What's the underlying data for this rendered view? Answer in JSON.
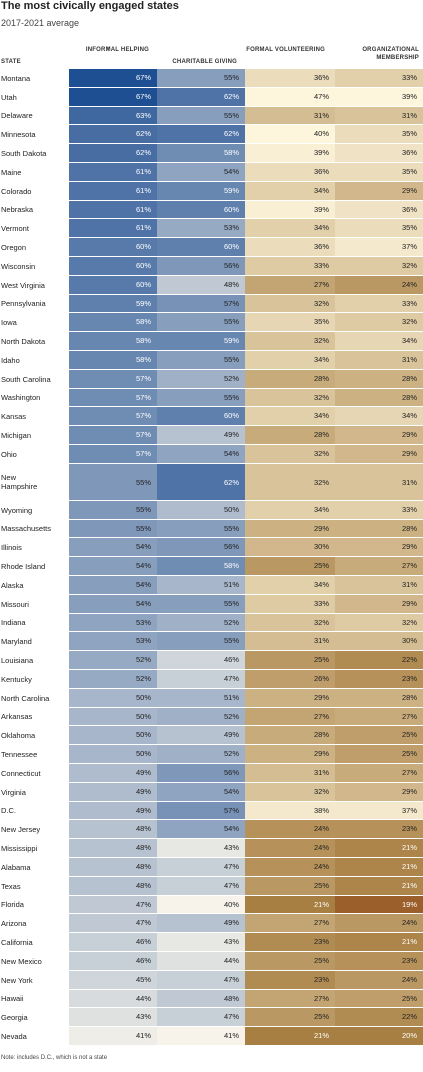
{
  "title": "The most civically engaged states",
  "subtitle": "2017-2021 average",
  "note": "Note: includes D.C., which is not a state",
  "columns": {
    "state": "STATE",
    "informal": "INFORMAL HELPING",
    "charitable": "CHARITABLE GIVING",
    "formal": "FORMAL VOLUNTEERING",
    "org": "ORGANIZATIONAL MEMBERSHIP"
  },
  "sort_icon": "sort-descending-icon",
  "colors": {
    "blue_low": "#f7f3ea",
    "blue_high": "#1f4f93",
    "gold_low": "#fdf5dc",
    "gold_high": "#a4793a",
    "florida_org": "#9b5f2c"
  },
  "chart_data": {
    "type": "table",
    "columns": [
      "State",
      "Informal helping",
      "Charitable giving",
      "Formal volunteering",
      "Organizational membership"
    ],
    "rows": [
      {
        "state": "Montana",
        "informal": 67,
        "charitable": 55,
        "formal": 36,
        "org": 33
      },
      {
        "state": "Utah",
        "informal": 67,
        "charitable": 62,
        "formal": 47,
        "org": 39
      },
      {
        "state": "Delaware",
        "informal": 63,
        "charitable": 55,
        "formal": 31,
        "org": 31
      },
      {
        "state": "Minnesota",
        "informal": 62,
        "charitable": 62,
        "formal": 40,
        "org": 35
      },
      {
        "state": "South Dakota",
        "informal": 62,
        "charitable": 58,
        "formal": 39,
        "org": 36
      },
      {
        "state": "Maine",
        "informal": 61,
        "charitable": 54,
        "formal": 36,
        "org": 35
      },
      {
        "state": "Colorado",
        "informal": 61,
        "charitable": 59,
        "formal": 34,
        "org": 29
      },
      {
        "state": "Nebraska",
        "informal": 61,
        "charitable": 60,
        "formal": 39,
        "org": 36
      },
      {
        "state": "Vermont",
        "informal": 61,
        "charitable": 53,
        "formal": 34,
        "org": 35
      },
      {
        "state": "Oregon",
        "informal": 60,
        "charitable": 60,
        "formal": 36,
        "org": 37
      },
      {
        "state": "Wisconsin",
        "informal": 60,
        "charitable": 56,
        "formal": 33,
        "org": 32
      },
      {
        "state": "West Virginia",
        "informal": 60,
        "charitable": 48,
        "formal": 27,
        "org": 24
      },
      {
        "state": "Pennsylvania",
        "informal": 59,
        "charitable": 57,
        "formal": 32,
        "org": 33
      },
      {
        "state": "Iowa",
        "informal": 58,
        "charitable": 55,
        "formal": 35,
        "org": 32
      },
      {
        "state": "North Dakota",
        "informal": 58,
        "charitable": 59,
        "formal": 32,
        "org": 34
      },
      {
        "state": "Idaho",
        "informal": 58,
        "charitable": 55,
        "formal": 34,
        "org": 31
      },
      {
        "state": "South Carolina",
        "informal": 57,
        "charitable": 52,
        "formal": 28,
        "org": 28
      },
      {
        "state": "Washington",
        "informal": 57,
        "charitable": 55,
        "formal": 32,
        "org": 28
      },
      {
        "state": "Kansas",
        "informal": 57,
        "charitable": 60,
        "formal": 34,
        "org": 34
      },
      {
        "state": "Michigan",
        "informal": 57,
        "charitable": 49,
        "formal": 28,
        "org": 29
      },
      {
        "state": "Ohio",
        "informal": 57,
        "charitable": 54,
        "formal": 32,
        "org": 29
      },
      {
        "state": "New Hampshire",
        "informal": 55,
        "charitable": 62,
        "formal": 32,
        "org": 31
      },
      {
        "state": "Wyoming",
        "informal": 55,
        "charitable": 50,
        "formal": 34,
        "org": 33
      },
      {
        "state": "Massachusetts",
        "informal": 55,
        "charitable": 55,
        "formal": 29,
        "org": 28
      },
      {
        "state": "Illinois",
        "informal": 54,
        "charitable": 56,
        "formal": 30,
        "org": 29
      },
      {
        "state": "Rhode Island",
        "informal": 54,
        "charitable": 58,
        "formal": 25,
        "org": 27
      },
      {
        "state": "Alaska",
        "informal": 54,
        "charitable": 51,
        "formal": 34,
        "org": 31
      },
      {
        "state": "Missouri",
        "informal": 54,
        "charitable": 55,
        "formal": 33,
        "org": 29
      },
      {
        "state": "Indiana",
        "informal": 53,
        "charitable": 52,
        "formal": 32,
        "org": 32
      },
      {
        "state": "Maryland",
        "informal": 53,
        "charitable": 55,
        "formal": 31,
        "org": 30
      },
      {
        "state": "Louisiana",
        "informal": 52,
        "charitable": 46,
        "formal": 25,
        "org": 22
      },
      {
        "state": "Kentucky",
        "informal": 52,
        "charitable": 47,
        "formal": 26,
        "org": 23
      },
      {
        "state": "North Carolina",
        "informal": 50,
        "charitable": 51,
        "formal": 29,
        "org": 28
      },
      {
        "state": "Arkansas",
        "informal": 50,
        "charitable": 52,
        "formal": 27,
        "org": 27
      },
      {
        "state": "Oklahoma",
        "informal": 50,
        "charitable": 49,
        "formal": 28,
        "org": 25
      },
      {
        "state": "Tennessee",
        "informal": 50,
        "charitable": 52,
        "formal": 29,
        "org": 25
      },
      {
        "state": "Connecticut",
        "informal": 49,
        "charitable": 56,
        "formal": 31,
        "org": 27
      },
      {
        "state": "Virginia",
        "informal": 49,
        "charitable": 54,
        "formal": 32,
        "org": 29
      },
      {
        "state": "D.C.",
        "informal": 49,
        "charitable": 57,
        "formal": 38,
        "org": 37
      },
      {
        "state": "New Jersey",
        "informal": 48,
        "charitable": 54,
        "formal": 24,
        "org": 23
      },
      {
        "state": "Mississippi",
        "informal": 48,
        "charitable": 43,
        "formal": 24,
        "org": 21
      },
      {
        "state": "Alabama",
        "informal": 48,
        "charitable": 47,
        "formal": 24,
        "org": 21
      },
      {
        "state": "Texas",
        "informal": 48,
        "charitable": 47,
        "formal": 25,
        "org": 21
      },
      {
        "state": "Florida",
        "informal": 47,
        "charitable": 40,
        "formal": 21,
        "org": 19
      },
      {
        "state": "Arizona",
        "informal": 47,
        "charitable": 49,
        "formal": 27,
        "org": 24
      },
      {
        "state": "California",
        "informal": 46,
        "charitable": 43,
        "formal": 23,
        "org": 21
      },
      {
        "state": "New Mexico",
        "informal": 46,
        "charitable": 44,
        "formal": 25,
        "org": 23
      },
      {
        "state": "New York",
        "informal": 45,
        "charitable": 47,
        "formal": 23,
        "org": 24
      },
      {
        "state": "Hawaii",
        "informal": 44,
        "charitable": 48,
        "formal": 27,
        "org": 25
      },
      {
        "state": "Georgia",
        "informal": 43,
        "charitable": 47,
        "formal": 25,
        "org": 22
      },
      {
        "state": "Nevada",
        "informal": 41,
        "charitable": 41,
        "formal": 21,
        "org": 20
      }
    ]
  }
}
